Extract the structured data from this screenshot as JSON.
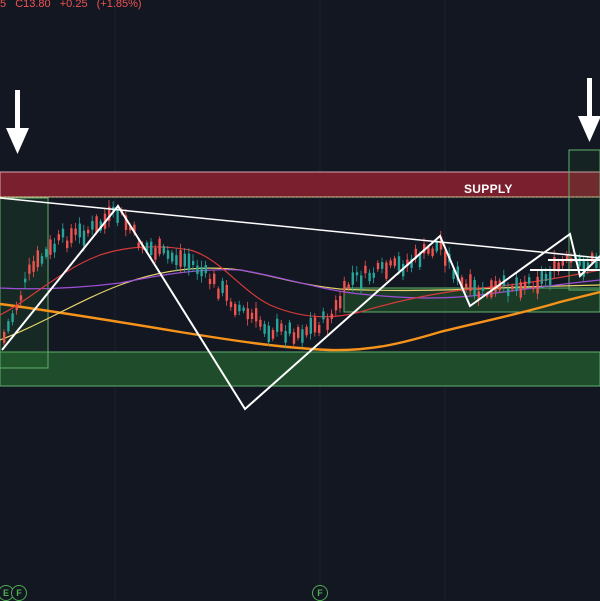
{
  "legend": {
    "prefix": "5",
    "close": "C13.80",
    "change": "+0.25",
    "change_pct": "(+1.85%)"
  },
  "zones": {
    "supply_label": "SUPPLY"
  },
  "markers": [
    {
      "label": "E"
    },
    {
      "label": "F"
    },
    {
      "label": "F"
    }
  ],
  "colors": {
    "background": "#131722",
    "supply_zone": "#7a1f2e",
    "demand_zone": "#1f4d2b",
    "up_candle": "#26a69a",
    "down_candle": "#ef5350",
    "trend_lines": "#ffffff",
    "ma_orange": "#f7931a",
    "ma_yellow": "#e6d36b",
    "ma_purple": "#9c4fd6",
    "ma_red": "#d63a3a"
  },
  "icons": [
    "down-arrow-icon",
    "down-arrow-icon"
  ]
}
